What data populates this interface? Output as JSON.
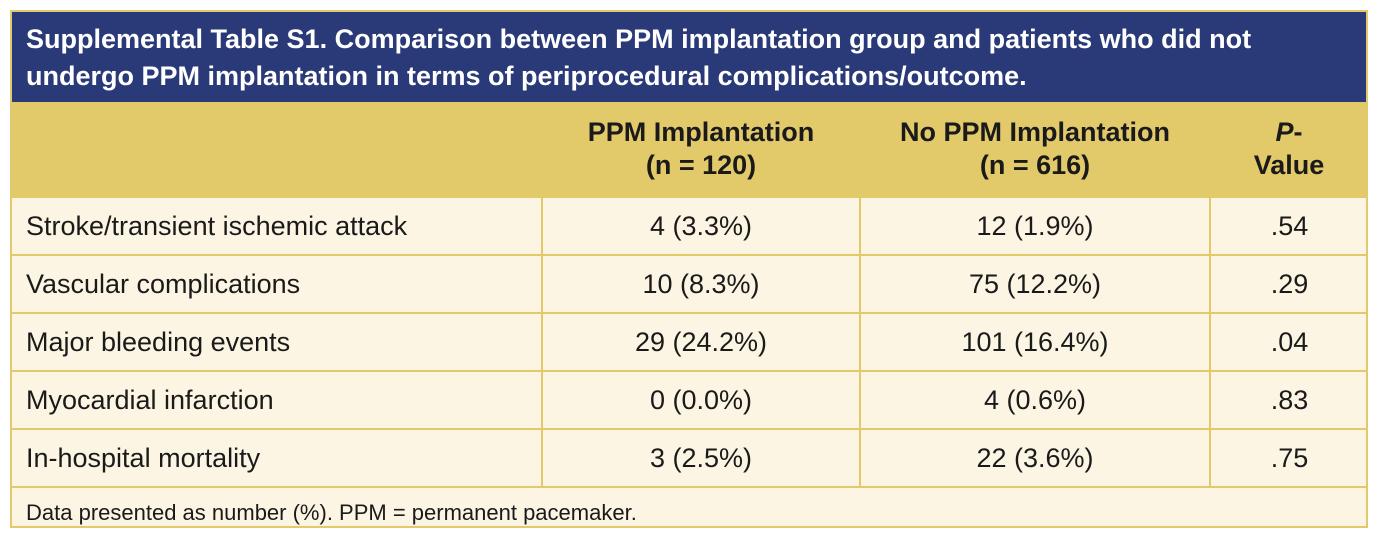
{
  "title": "Supplemental Table S1. Comparison between PPM implantation group and patients who did not undergo PPM implantation in terms of periprocedural complications/outcome.",
  "columns": {
    "ppm_line1": "PPM Implantation",
    "ppm_line2": "(n = 120)",
    "noppm_line1": "No PPM Implantation",
    "noppm_line2": "(n = 616)",
    "p_line1": "P",
    "p_dash": "-",
    "p_line2": "Value"
  },
  "rows": [
    {
      "label": "Stroke/transient ischemic attack",
      "ppm": "4 (3.3%)",
      "noppm": "12 (1.9%)",
      "p": ".54"
    },
    {
      "label": "Vascular complications",
      "ppm": "10 (8.3%)",
      "noppm": "75 (12.2%)",
      "p": ".29"
    },
    {
      "label": "Major bleeding events",
      "ppm": "29 (24.2%)",
      "noppm": "101 (16.4%)",
      "p": ".04"
    },
    {
      "label": "Myocardial infarction",
      "ppm": "0 (0.0%)",
      "noppm": "4 (0.6%)",
      "p": ".83"
    },
    {
      "label": "In-hospital mortality",
      "ppm": "3 (2.5%)",
      "noppm": "22 (3.6%)",
      "p": ".75"
    }
  ],
  "footnote": "Data presented as number (%). PPM = permanent pacemaker.",
  "colors": {
    "title_bg": "#2a3a78",
    "header_bg": "#e2c96a",
    "body_bg": "#fdf5e3"
  }
}
